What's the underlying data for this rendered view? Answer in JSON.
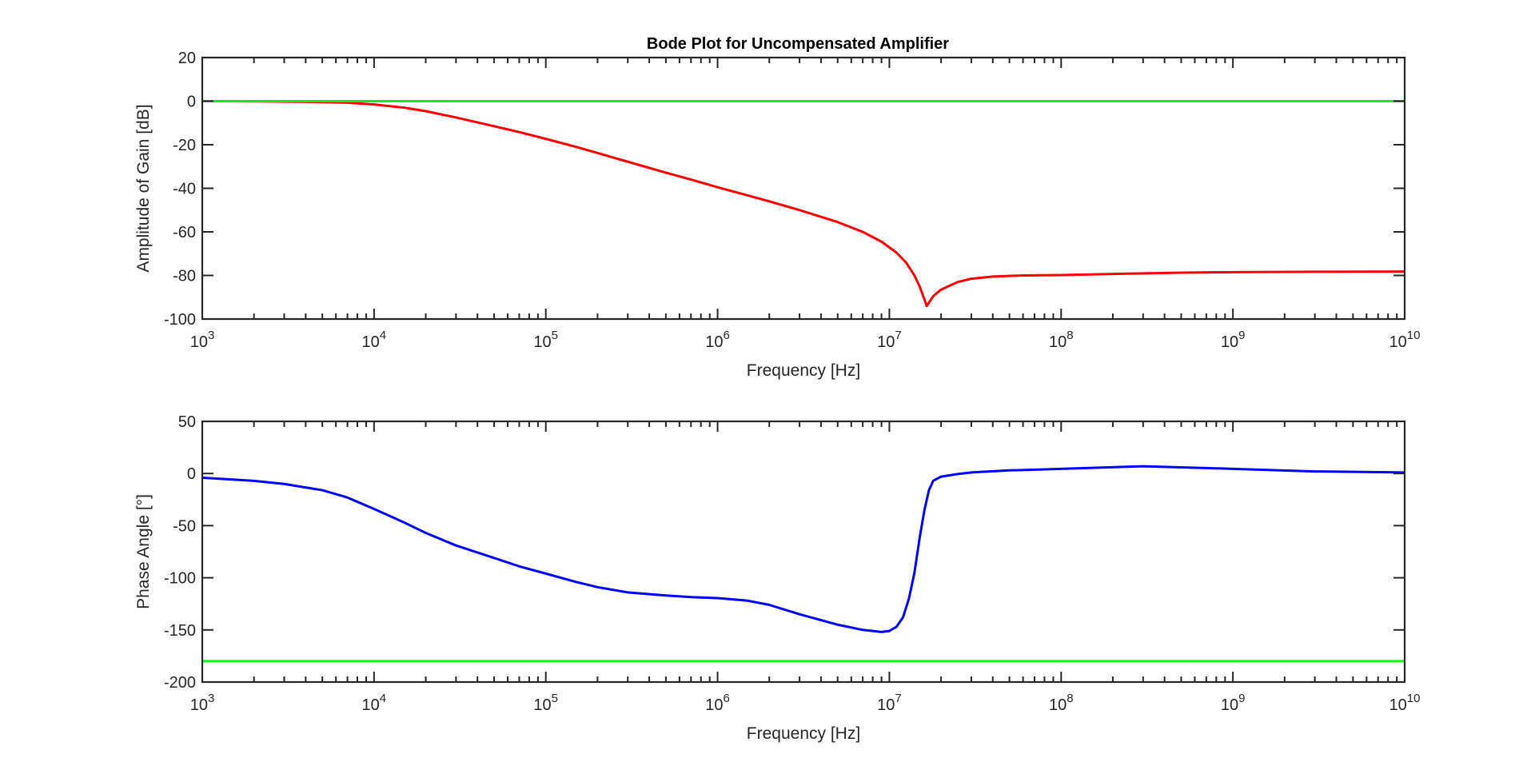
{
  "figure": {
    "title": "Bode Plot for Uncompensated Amplifier"
  },
  "chart_data": [
    {
      "type": "line",
      "title": "Bode Plot for Uncompensated Amplifier",
      "xlabel": "Frequency [Hz]",
      "ylabel": "Amplitude of Gain [dB]",
      "xscale": "log",
      "xlim": [
        1000,
        10000000000
      ],
      "ylim": [
        -100,
        20
      ],
      "xticks": [
        1000,
        10000,
        100000,
        1000000,
        10000000,
        100000000,
        1000000000,
        10000000000
      ],
      "xtick_labels": [
        {
          "base": "10",
          "exp": "3"
        },
        {
          "base": "10",
          "exp": "4"
        },
        {
          "base": "10",
          "exp": "5"
        },
        {
          "base": "10",
          "exp": "6"
        },
        {
          "base": "10",
          "exp": "7"
        },
        {
          "base": "10",
          "exp": "8"
        },
        {
          "base": "10",
          "exp": "9"
        },
        {
          "base": "10",
          "exp": "10"
        }
      ],
      "yticks": [
        20,
        0,
        -20,
        -40,
        -60,
        -80,
        -100
      ],
      "ytick_labels": [
        "20",
        "0",
        "-20",
        "-40",
        "-60",
        "-80",
        "-100"
      ],
      "grid": false,
      "series": [
        {
          "color": "#ff0000",
          "x": [
            1000,
            2000,
            4000,
            7000,
            10000,
            15000,
            20000,
            30000,
            50000,
            70000,
            100000,
            150000,
            200000,
            300000,
            500000,
            700000,
            1000000,
            1500000,
            2000000,
            3000000,
            5000000,
            7000000,
            9000000,
            11000000,
            12500000,
            14000000,
            15000000,
            15500000,
            16500000,
            18000000,
            20000000,
            25000000,
            30000000,
            40000000,
            60000000,
            100000000,
            200000000,
            500000000,
            1000000000,
            3000000000,
            10000000000
          ],
          "y": [
            0,
            -0.1,
            -0.3,
            -0.7,
            -1.5,
            -3,
            -4.6,
            -7.5,
            -11.5,
            -14.2,
            -17.3,
            -21,
            -23.8,
            -27.8,
            -32.8,
            -36,
            -39.5,
            -43.3,
            -46,
            -50,
            -55.5,
            -60,
            -64.5,
            -69.5,
            -74,
            -80,
            -85,
            -88,
            -94,
            -89.5,
            -86.5,
            -83,
            -81.5,
            -80.5,
            -80,
            -79.8,
            -79.3,
            -78.7,
            -78.5,
            -78.3,
            -78.2
          ]
        },
        {
          "color": "#00ff00",
          "x": [
            1000,
            10000000000
          ],
          "y": [
            0,
            0
          ]
        }
      ]
    },
    {
      "type": "line",
      "title": "",
      "xlabel": "Frequency [Hz]",
      "ylabel": "Phase Angle [°]",
      "xscale": "log",
      "xlim": [
        1000,
        10000000000
      ],
      "ylim": [
        -200,
        50
      ],
      "xticks": [
        1000,
        10000,
        100000,
        1000000,
        10000000,
        100000000,
        1000000000,
        10000000000
      ],
      "xtick_labels": [
        {
          "base": "10",
          "exp": "3"
        },
        {
          "base": "10",
          "exp": "4"
        },
        {
          "base": "10",
          "exp": "5"
        },
        {
          "base": "10",
          "exp": "6"
        },
        {
          "base": "10",
          "exp": "7"
        },
        {
          "base": "10",
          "exp": "8"
        },
        {
          "base": "10",
          "exp": "9"
        },
        {
          "base": "10",
          "exp": "10"
        }
      ],
      "yticks": [
        50,
        0,
        -50,
        -100,
        -150,
        -200
      ],
      "ytick_labels": [
        "50",
        "0",
        "-50",
        "-100",
        "-150",
        "-200"
      ],
      "grid": false,
      "series": [
        {
          "color": "#0000ff",
          "x": [
            1000,
            2000,
            3000,
            5000,
            7000,
            10000,
            15000,
            20000,
            30000,
            50000,
            70000,
            100000,
            150000,
            200000,
            300000,
            500000,
            700000,
            1000000,
            1500000,
            2000000,
            3000000,
            5000000,
            7000000,
            9000000,
            10000000,
            11000000,
            12000000,
            13000000,
            14000000,
            15000000,
            16000000,
            17000000,
            18000000,
            20000000,
            25000000,
            30000000,
            50000000,
            100000000,
            300000000,
            1000000000,
            3000000000,
            10000000000
          ],
          "y": [
            -4,
            -7,
            -10,
            -16,
            -23,
            -34,
            -47,
            -57,
            -69,
            -81,
            -89,
            -96,
            -104,
            -109,
            -114,
            -117,
            -118.5,
            -119.5,
            -122,
            -126,
            -135,
            -145,
            -150,
            -152,
            -151,
            -147,
            -138,
            -120,
            -95,
            -62,
            -35,
            -16,
            -7,
            -3,
            -0.5,
            1,
            3,
            4.5,
            7,
            4.5,
            2,
            1
          ]
        },
        {
          "color": "#00ff00",
          "x": [
            1000,
            10000000000
          ],
          "y": [
            -180,
            -180
          ]
        }
      ]
    }
  ]
}
